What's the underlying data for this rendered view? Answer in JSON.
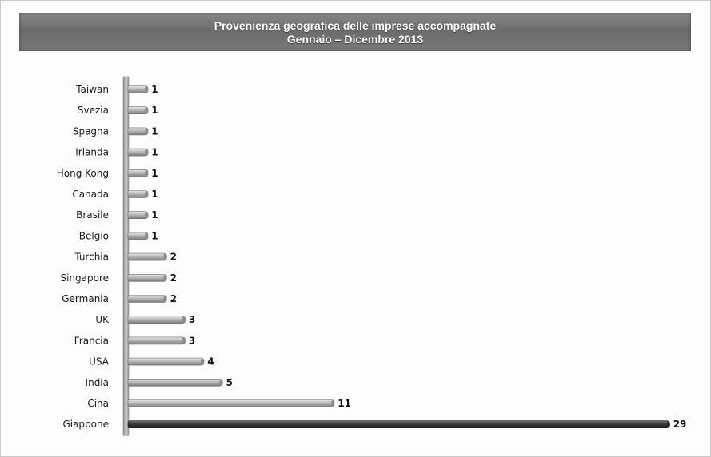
{
  "chart_data": {
    "type": "bar",
    "orientation": "horizontal",
    "title": "Provenienza geografica delle imprese accompagnate",
    "subtitle": "Gennaio – Dicembre 2013",
    "categories": [
      "Taiwan",
      "Svezia",
      "Spagna",
      "Irlanda",
      "Hong Kong",
      "Canada",
      "Brasile",
      "Belgio",
      "Turchia",
      "Singapore",
      "Germania",
      "UK",
      "Francia",
      "USA",
      "India",
      "Cina",
      "Giappone"
    ],
    "values": [
      1,
      1,
      1,
      1,
      1,
      1,
      1,
      1,
      2,
      2,
      2,
      3,
      3,
      4,
      5,
      11,
      29
    ],
    "xlabel": "",
    "ylabel": "",
    "grid": false,
    "legend": "none",
    "colors": {
      "bar": "#b5b5b5",
      "bar_highlight": "#3a3a3a",
      "axis": "#8a8a8a"
    }
  }
}
